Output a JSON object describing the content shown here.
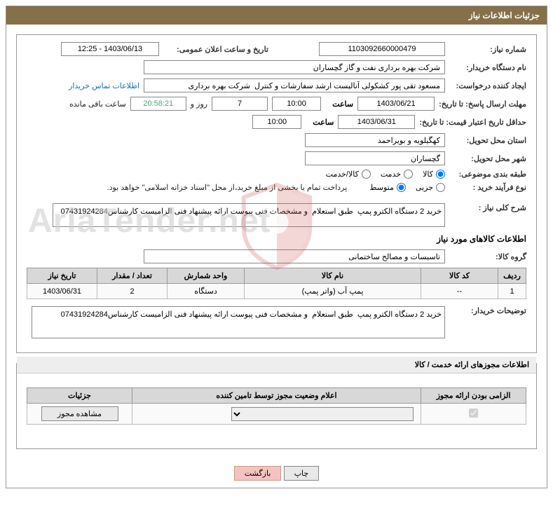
{
  "header": {
    "title": "جزئیات اطلاعات نیاز"
  },
  "fields": {
    "need_no_label": "شماره نیاز:",
    "need_no": "1103092660000479",
    "announce_label": "تاریخ و ساعت اعلان عمومی:",
    "announce_value": "1403/06/13 - 12:25",
    "buyer_org_label": "نام دستگاه خریدار:",
    "buyer_org": "شرکت بهره برداری نفت و گاز گچساران",
    "requester_label": "ایجاد کننده درخواست:",
    "requester": "مسعود تقی پور کشکولی آنالیست ارشد سفارشات و کنترل  شرکت بهره برداری",
    "contact_link": "اطلاعات تماس خریدار",
    "deadline_label": "مهلت ارسال پاسخ: تا تاریخ:",
    "deadline_date": "1403/06/21",
    "time_label": "ساعت",
    "deadline_time": "10:00",
    "days_remaining": "7",
    "days_text": "روز و",
    "time_remaining": "20:58:21",
    "remaining_text": "ساعت باقی مانده",
    "validity_label": "حداقل تاریخ اعتبار قیمت: تا تاریخ:",
    "validity_date": "1403/06/31",
    "validity_time": "10:00",
    "province_label": "استان محل تحویل:",
    "province": "کهگیلویه و بویراحمد",
    "city_label": "شهر محل تحویل:",
    "city": "گچساران",
    "category_label": "طبقه بندی موضوعی:",
    "cat_opt1": "کالا",
    "cat_opt2": "خدمت",
    "cat_opt3": "کالا/خدمت",
    "process_label": "نوع فرآیند خرید :",
    "proc_opt1": "جزیی",
    "proc_opt2": "متوسط",
    "treasury_note": "پرداخت تمام یا بخشی از مبلغ خرید،از محل \"اسناد خزانه اسلامی\" خواهد بود.",
    "desc_label": "شرح کلی نیاز :",
    "desc_text": "خرید 2 دستگاه الکترو پمپ  طبق استعلام  و مشخصات فنی پیوست ارائه پیشنهاد فنی الزامیست کارشناس07431924284",
    "goods_title": "اطلاعات کالاهای مورد نیاز",
    "group_label": "گروه کالا:",
    "group_value": "تاسیسات و مصالح ساختمانی",
    "buyer_notes_label": "توضیحات خریدار:",
    "buyer_notes": "خرید 2 دستگاه الکترو پمپ  طبق استعلام  و مشخصات فنی پیوست ارائه پیشنهاد فنی الزامیست کارشناس07431924284"
  },
  "table": {
    "headers": {
      "row": "ردیف",
      "code": "کد کالا",
      "name": "نام کالا",
      "unit": "واحد شمارش",
      "qty": "تعداد / مقدار",
      "date": "تاریخ نیاز"
    },
    "rows": [
      {
        "row": "1",
        "code": "--",
        "name": "پمپ آب (واتر پمپ)",
        "unit": "دستگاه",
        "qty": "2",
        "date": "1403/06/31"
      }
    ]
  },
  "permits": {
    "title": "اطلاعات مجوزهای ارائه خدمت / کالا",
    "headers": {
      "mandatory": "الزامی بودن ارائه مجوز",
      "status": "اعلام وضعیت مجوز توسط تامین کننده",
      "details": "جزئیات"
    },
    "view_btn": "مشاهده مجوز"
  },
  "buttons": {
    "print": "چاپ",
    "back": "بازگشت"
  },
  "colors": {
    "header_bg": "#85704a",
    "border": "#999999",
    "th_bg": "#d8d8d8",
    "link": "#1a6fb5"
  }
}
